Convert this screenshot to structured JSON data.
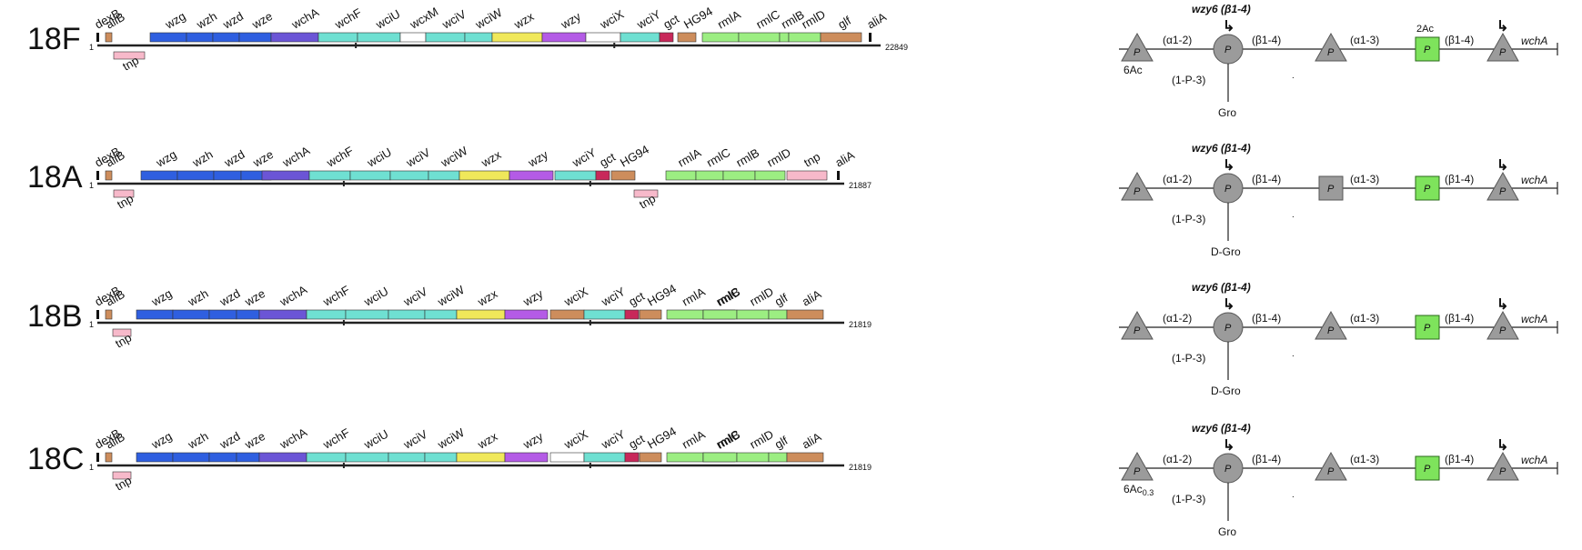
{
  "colors": {
    "blue": "#2f5fe0",
    "purple": "#6b55d6",
    "cyan": "#6fe0d2",
    "yellow": "#f0e85a",
    "violet": "#b45be6",
    "white": "#ffffff",
    "crimson": "#c8285a",
    "tan": "#cd8d5c",
    "lightgreen": "#9cee82",
    "pink": "#f7b9ca",
    "sugar": "#9b9b9b",
    "sugarStroke": "#555555",
    "green_sugar": "#7ee35c",
    "line": "#222222"
  },
  "panels": [
    {
      "serotype": "18F",
      "length": "22849",
      "start": "1",
      "genes": [
        {
          "label": "dexB",
          "color": "black",
          "kind": "tick"
        },
        {
          "label": "aliB",
          "color": "tan",
          "kind": "small"
        },
        {
          "label": "wzg",
          "color": "blue"
        },
        {
          "label": "wzh",
          "color": "blue"
        },
        {
          "label": "wzd",
          "color": "blue"
        },
        {
          "label": "wze",
          "color": "blue"
        },
        {
          "label": "wchA",
          "color": "purple"
        },
        {
          "label": "wchF",
          "color": "cyan"
        },
        {
          "label": "wciU",
          "color": "cyan"
        },
        {
          "label": "wcxM",
          "color": "white"
        },
        {
          "label": "wciV",
          "color": "cyan"
        },
        {
          "label": "wciW",
          "color": "cyan"
        },
        {
          "label": "wzx",
          "color": "yellow"
        },
        {
          "label": "wzy",
          "color": "violet"
        },
        {
          "label": "wciX",
          "color": "white"
        },
        {
          "label": "wciY",
          "color": "cyan"
        },
        {
          "label": "gct",
          "color": "crimson"
        },
        {
          "label": "HG94",
          "color": "tan"
        },
        {
          "label": "rmlA",
          "color": "lightgreen"
        },
        {
          "label": "rmlC",
          "color": "lightgreen"
        },
        {
          "label": "rmlB",
          "color": "lightgreen"
        },
        {
          "label": "rmlD",
          "color": "lightgreen"
        },
        {
          "label": "glf",
          "color": "tan"
        },
        {
          "label": "aliA",
          "color": "black",
          "kind": "tick"
        }
      ],
      "tnp": [
        "tnp"
      ],
      "structure": {
        "enzyme": "wzy6 (β1-4)",
        "links": [
          "(α1-2)",
          "(β1-4)",
          "(α1-3)",
          "(β1-4)"
        ],
        "branch_link": "(1-P-3)",
        "branch": "Gro",
        "first_sub": "6Ac",
        "green_sub": "2Ac",
        "end_gene": "wchA",
        "sugar_label": "P"
      }
    },
    {
      "serotype": "18A",
      "length": "21887",
      "start": "1",
      "genes": [
        {
          "label": "dexB"
        },
        {
          "label": "aliB"
        },
        {
          "label": "wzg"
        },
        {
          "label": "wzh"
        },
        {
          "label": "wzd"
        },
        {
          "label": "wze"
        },
        {
          "label": "wchA"
        },
        {
          "label": "wchF"
        },
        {
          "label": "wciU"
        },
        {
          "label": "wciV"
        },
        {
          "label": "wciW"
        },
        {
          "label": "wzx"
        },
        {
          "label": "wzy"
        },
        {
          "label": "wciY"
        },
        {
          "label": "gct"
        },
        {
          "label": "HG94"
        },
        {
          "label": "rmlA"
        },
        {
          "label": "rmlC"
        },
        {
          "label": "rmlB"
        },
        {
          "label": "rmlD"
        },
        {
          "label": "tnp"
        },
        {
          "label": "aliA"
        }
      ],
      "tnp": [
        "tnp",
        "tnp"
      ],
      "structure": {
        "enzyme": "wzy6 (β1-4)",
        "links": [
          "(α1-2)",
          "(β1-4)",
          "(α1-3)",
          "(β1-4)"
        ],
        "branch_link": "(1-P-3)",
        "branch": "D-Gro",
        "end_gene": "wchA",
        "sugar_label": "P"
      }
    },
    {
      "serotype": "18B",
      "length": "21819",
      "start": "1",
      "genes": [
        {
          "label": "dexB"
        },
        {
          "label": "aliB"
        },
        {
          "label": "wzg"
        },
        {
          "label": "wzh"
        },
        {
          "label": "wzd"
        },
        {
          "label": "wze"
        },
        {
          "label": "wchA"
        },
        {
          "label": "wchF"
        },
        {
          "label": "wciU"
        },
        {
          "label": "wciV"
        },
        {
          "label": "wciW"
        },
        {
          "label": "wzx"
        },
        {
          "label": "wzy"
        },
        {
          "label": "wciX"
        },
        {
          "label": "wciY"
        },
        {
          "label": "gct"
        },
        {
          "label": "HG94"
        },
        {
          "label": "rmlA"
        },
        {
          "label": "rmlC"
        },
        {
          "label": "rmlB"
        },
        {
          "label": "rmlD"
        },
        {
          "label": "glf"
        },
        {
          "label": "aliA"
        }
      ],
      "tnp": [
        "tnp"
      ],
      "structure": {
        "enzyme": "wzy6 (β1-4)",
        "links": [
          "(α1-2)",
          "(β1-4)",
          "(α1-3)",
          "(β1-4)"
        ],
        "branch_link": "(1-P-3)",
        "branch": "D-Gro",
        "end_gene": "wchA",
        "sugar_label": "P"
      }
    },
    {
      "serotype": "18C",
      "length": "21819",
      "start": "1",
      "genes": [
        {
          "label": "dexB"
        },
        {
          "label": "aliB"
        },
        {
          "label": "wzg"
        },
        {
          "label": "wzh"
        },
        {
          "label": "wzd"
        },
        {
          "label": "wze"
        },
        {
          "label": "wchA"
        },
        {
          "label": "wchF"
        },
        {
          "label": "wciU"
        },
        {
          "label": "wciV"
        },
        {
          "label": "wciW"
        },
        {
          "label": "wzx"
        },
        {
          "label": "wzy"
        },
        {
          "label": "wciX"
        },
        {
          "label": "wciY"
        },
        {
          "label": "gct"
        },
        {
          "label": "HG94"
        },
        {
          "label": "rmlA"
        },
        {
          "label": "rmlC"
        },
        {
          "label": "rmlB"
        },
        {
          "label": "rmlD"
        },
        {
          "label": "glf"
        },
        {
          "label": "aliA"
        }
      ],
      "tnp": [
        "tnp"
      ],
      "structure": {
        "enzyme": "wzy6 (β1-4)",
        "links": [
          "(α1-2)",
          "(β1-4)",
          "(α1-3)",
          "(β1-4)"
        ],
        "branch_link": "(1-P-3)",
        "branch": "Gro",
        "first_sub": "6Ac",
        "first_sub_subscript": "0.3",
        "end_gene": "wchA",
        "sugar_label": "P"
      }
    }
  ]
}
